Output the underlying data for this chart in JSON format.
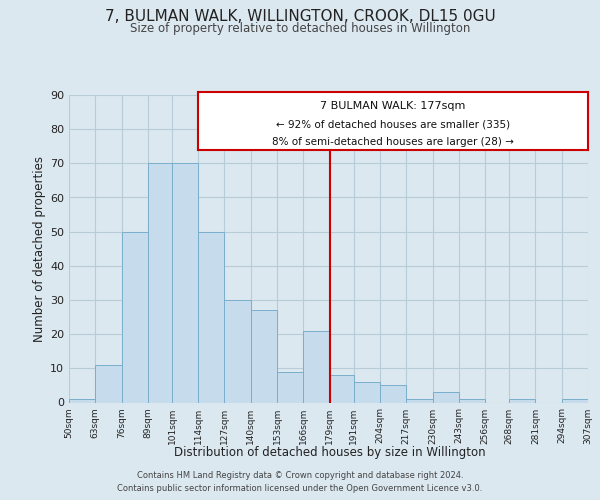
{
  "title": "7, BULMAN WALK, WILLINGTON, CROOK, DL15 0GU",
  "subtitle": "Size of property relative to detached houses in Willington",
  "xlabel": "Distribution of detached houses by size in Willington",
  "ylabel": "Number of detached properties",
  "bar_edges": [
    50,
    63,
    76,
    89,
    101,
    114,
    127,
    140,
    153,
    166,
    179,
    191,
    204,
    217,
    230,
    243,
    256,
    268,
    281,
    294,
    307
  ],
  "bar_heights": [
    1,
    11,
    50,
    70,
    70,
    50,
    30,
    27,
    9,
    21,
    8,
    6,
    5,
    1,
    3,
    1,
    0,
    1,
    0,
    1
  ],
  "bar_color": "#c6dcec",
  "bar_edgecolor": "#7aaecb",
  "reference_line_x": 179,
  "reference_line_color": "#cc0000",
  "ylim": [
    0,
    90
  ],
  "yticks": [
    0,
    10,
    20,
    30,
    40,
    50,
    60,
    70,
    80,
    90
  ],
  "annotation_title": "7 BULMAN WALK: 177sqm",
  "annotation_line1": "← 92% of detached houses are smaller (335)",
  "annotation_line2": "8% of semi-detached houses are larger (28) →",
  "footer_line1": "Contains HM Land Registry data © Crown copyright and database right 2024.",
  "footer_line2": "Contains public sector information licensed under the Open Government Licence v3.0.",
  "bg_color": "#dce8f0",
  "plot_bg_color": "#dce8f0",
  "grid_color": "#b8ccd8"
}
